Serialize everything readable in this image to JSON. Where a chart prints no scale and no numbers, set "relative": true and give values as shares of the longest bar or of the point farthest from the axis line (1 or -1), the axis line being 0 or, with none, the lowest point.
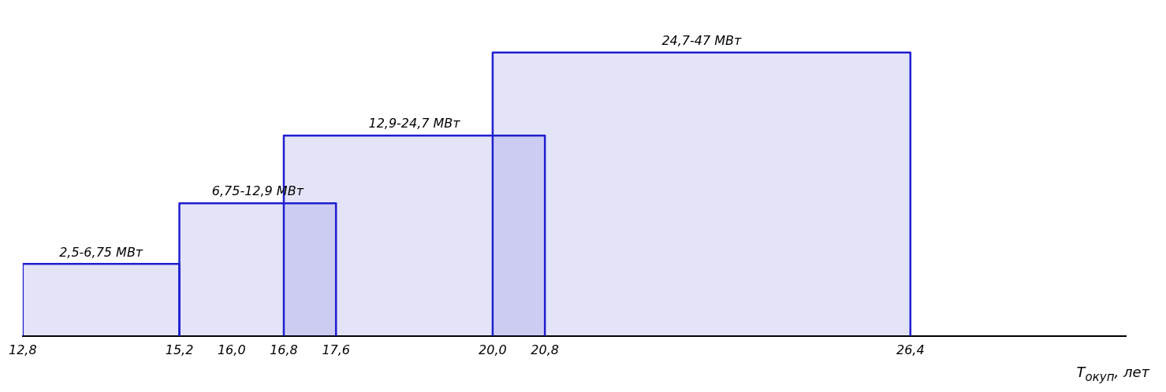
{
  "chart_data": {
    "type": "area",
    "relative": true,
    "xlabel": "T$_{окуп}$, лет",
    "xlim": [
      12.8,
      29.7
    ],
    "xticks": [
      {
        "value": 12.8,
        "label": "12,8"
      },
      {
        "value": 15.2,
        "label": "15,2"
      },
      {
        "value": 16.0,
        "label": "16,0"
      },
      {
        "value": 16.8,
        "label": "16,8"
      },
      {
        "value": 17.6,
        "label": "17,6"
      },
      {
        "value": 20.0,
        "label": "20,0"
      },
      {
        "value": 20.8,
        "label": "20,8"
      },
      {
        "value": 26.4,
        "label": "26,4"
      }
    ],
    "legend": false,
    "grid": false,
    "marker": "none",
    "series": [
      {
        "name": "2,5-6,75 МВт",
        "color": "#1f1fd0",
        "x": [
          12.8,
          12.8,
          15.2,
          15.2
        ],
        "values": [
          0,
          0.254,
          0.254,
          0
        ]
      },
      {
        "name": "6,75-12,9 МВт",
        "color": "#1f1fd0",
        "x": [
          15.2,
          15.2,
          17.6,
          17.6
        ],
        "values": [
          0,
          0.468,
          0.468,
          0
        ]
      },
      {
        "name": "12,9-24,7 МВт",
        "color": "#1f1fd0",
        "x": [
          16.8,
          16.8,
          20.8,
          20.8
        ],
        "values": [
          0,
          0.707,
          0.707,
          0
        ]
      },
      {
        "name": "24,7-47 МВт",
        "color": "#1f1fd0",
        "x": [
          20.0,
          20.0,
          26.4,
          26.4
        ],
        "values": [
          0,
          1,
          1,
          0
        ]
      }
    ]
  }
}
